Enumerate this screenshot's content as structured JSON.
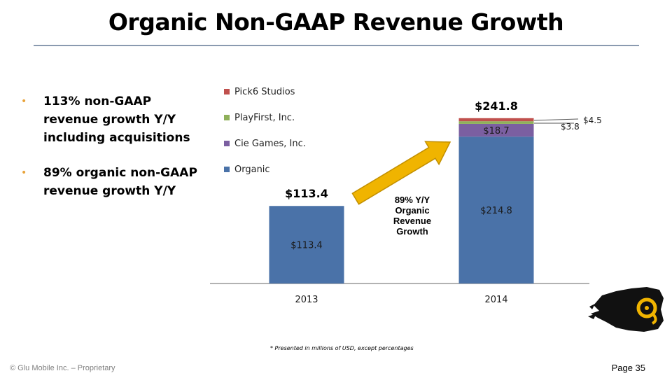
{
  "slide": {
    "title": "Organic Non-GAAP Revenue Growth",
    "bullets": [
      "113% non-GAAP revenue growth Y/Y including acquisitions",
      "89% organic non-GAAP revenue growth Y/Y"
    ],
    "callout": "89% Y/Y Organic Revenue Growth",
    "footnote": "* Presented in millions of USD, except percentages",
    "copyright": "© Glu Mobile Inc. – Proprietary",
    "page_label": "Page 35",
    "accent_color": "#f0b400"
  },
  "chart_data": {
    "type": "bar",
    "stacked": true,
    "categories": [
      "2013",
      "2014"
    ],
    "series": [
      {
        "name": "Organic",
        "color": "#4a72a8",
        "values": [
          113.4,
          214.8
        ],
        "labels": [
          "$113.4",
          "$214.8"
        ]
      },
      {
        "name": "Cie Games, Inc.",
        "color": "#7b5fa1",
        "values": [
          0,
          18.7
        ],
        "labels": [
          "",
          "$18.7"
        ]
      },
      {
        "name": "PlayFirst, Inc.",
        "color": "#8fb05a",
        "values": [
          0,
          3.8
        ],
        "labels": [
          "",
          "$3.8"
        ]
      },
      {
        "name": "Pick6 Studios",
        "color": "#c0504d",
        "values": [
          0,
          4.5
        ],
        "labels": [
          "",
          "$4.5"
        ]
      }
    ],
    "totals": [
      "$113.4",
      "$241.8"
    ],
    "ylim": [
      0,
      260
    ],
    "legend": "top-left",
    "grid": false
  }
}
